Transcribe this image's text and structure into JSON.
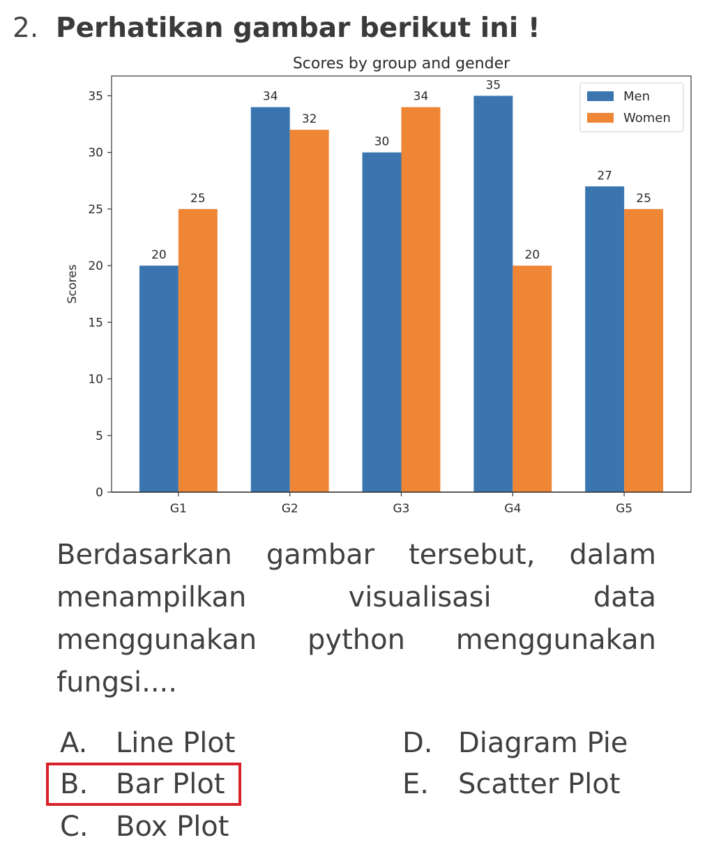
{
  "question": {
    "number": "2.",
    "title": "Perhatikan gambar berikut ini !",
    "body": "Berdasarkan gambar tersebut, dalam menampilkan visualisasi data menggunakan python menggunakan fungsi...."
  },
  "options": [
    {
      "letter": "A.",
      "text": "Line Plot"
    },
    {
      "letter": "B.",
      "text": "Bar Plot"
    },
    {
      "letter": "C.",
      "text": "Box Plot"
    },
    {
      "letter": "D.",
      "text": "Diagram Pie"
    },
    {
      "letter": "E.",
      "text": "Scatter Plot"
    }
  ],
  "chart_data": {
    "type": "bar",
    "title": "Scores by group and gender",
    "xlabel": "",
    "ylabel": "Scores",
    "categories": [
      "G1",
      "G2",
      "G3",
      "G4",
      "G5"
    ],
    "series": [
      {
        "name": "Men",
        "values": [
          20,
          34,
          30,
          35,
          27
        ],
        "color": "#3a75b0"
      },
      {
        "name": "Women",
        "values": [
          25,
          32,
          34,
          20,
          25
        ],
        "color": "#ef8636"
      }
    ],
    "ylim": [
      0,
      36.75
    ],
    "yticks": [
      0,
      5,
      10,
      15,
      20,
      25,
      30,
      35
    ],
    "legend_position": "top-right",
    "grid": false
  }
}
